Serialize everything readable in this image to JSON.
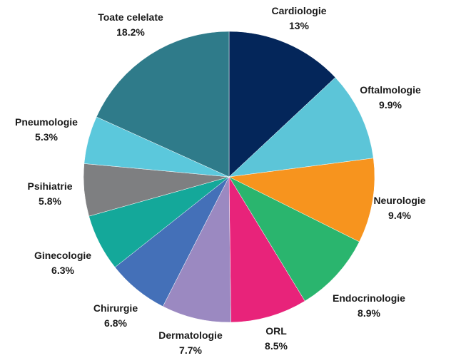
{
  "chart_data": {
    "type": "pie",
    "title": "",
    "start_angle_deg": 0,
    "direction": "clockwise",
    "slices": [
      {
        "label": "Cardiologie",
        "value": 13,
        "value_label": "13%",
        "color": "#04265a"
      },
      {
        "label": "Oftalmologie",
        "value": 9.9,
        "value_label": "9.9%",
        "color": "#5cc5d8"
      },
      {
        "label": "Neurologie",
        "value": 9.4,
        "value_label": "9.4%",
        "color": "#f7941e"
      },
      {
        "label": "Endocrinologie",
        "value": 8.9,
        "value_label": "8.9%",
        "color": "#2ab56e"
      },
      {
        "label": "ORL",
        "value": 8.5,
        "value_label": "8.5%",
        "color": "#e8237a"
      },
      {
        "label": "Dermatologie",
        "value": 7.7,
        "value_label": "7.7%",
        "color": "#9b89c1"
      },
      {
        "label": "Chirurgie",
        "value": 6.8,
        "value_label": "6.8%",
        "color": "#4470b8"
      },
      {
        "label": "Ginecologie",
        "value": 6.3,
        "value_label": "6.3%",
        "color": "#14a89a"
      },
      {
        "label": "Psihiatrie",
        "value": 5.8,
        "value_label": "5.8%",
        "color": "#7e7f81"
      },
      {
        "label": "Pneumologie",
        "value": 5.3,
        "value_label": "5.3%",
        "color": "#5bc8dc"
      },
      {
        "label": "Toate celelate",
        "value": 18.2,
        "value_label": "18.2%",
        "color": "#2f7b8a"
      }
    ]
  }
}
